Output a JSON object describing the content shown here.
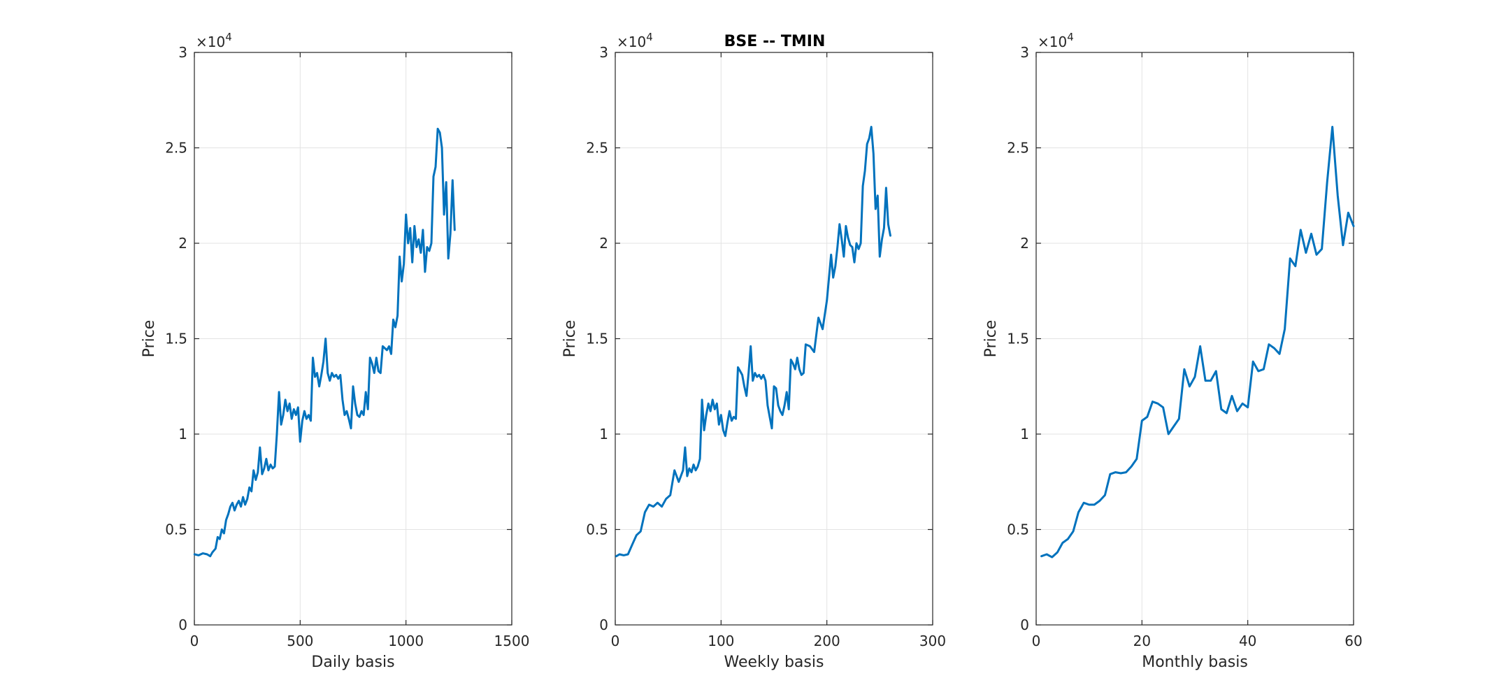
{
  "figure": {
    "title": "BSE -- TMIN",
    "line_color": "#0072bd",
    "grid_color": "#e3e3e3",
    "axis_color": "#262626"
  },
  "chart_data": [
    {
      "type": "line",
      "title": "",
      "xlabel": "Daily basis",
      "ylabel": "Price",
      "xlim": [
        0,
        1500
      ],
      "ylim": [
        0,
        30000
      ],
      "xticks": [
        0,
        500,
        1000,
        1500
      ],
      "xtick_labels": [
        "0",
        "500",
        "1000",
        "1500"
      ],
      "yticks": [
        0,
        5000,
        10000,
        15000,
        20000,
        25000,
        30000
      ],
      "ytick_labels": [
        "0",
        "0.5",
        "1",
        "1.5",
        "2",
        "2.5",
        "3"
      ],
      "y_exponent": "4",
      "grid": true,
      "series": [
        {
          "x": [
            1,
            20,
            40,
            60,
            75,
            85,
            100,
            110,
            120,
            130,
            140,
            150,
            160,
            170,
            180,
            190,
            200,
            210,
            220,
            230,
            240,
            250,
            260,
            270,
            280,
            290,
            300,
            310,
            320,
            330,
            340,
            350,
            360,
            370,
            380,
            390,
            400,
            410,
            420,
            430,
            440,
            450,
            460,
            470,
            480,
            490,
            500,
            510,
            520,
            530,
            540,
            550,
            560,
            570,
            580,
            590,
            600,
            610,
            620,
            630,
            640,
            650,
            660,
            670,
            680,
            690,
            700,
            710,
            720,
            730,
            740,
            750,
            760,
            770,
            780,
            790,
            800,
            810,
            820,
            830,
            840,
            850,
            860,
            870,
            880,
            890,
            900,
            910,
            920,
            930,
            940,
            950,
            960,
            970,
            980,
            990,
            1000,
            1010,
            1020,
            1030,
            1040,
            1050,
            1060,
            1070,
            1080,
            1090,
            1100,
            1110,
            1120,
            1130,
            1140,
            1150,
            1160,
            1170,
            1180,
            1190,
            1200,
            1210,
            1220,
            1230
          ],
          "y": [
            3700,
            3650,
            3750,
            3700,
            3600,
            3800,
            4000,
            4600,
            4500,
            5000,
            4800,
            5500,
            5800,
            6200,
            6400,
            6000,
            6300,
            6500,
            6200,
            6700,
            6300,
            6600,
            7200,
            7000,
            8100,
            7600,
            8000,
            9300,
            7900,
            8200,
            8700,
            8100,
            8400,
            8200,
            8300,
            10000,
            12200,
            10500,
            11000,
            11800,
            11200,
            11600,
            10800,
            11300,
            11000,
            11400,
            9600,
            10700,
            11200,
            10800,
            11000,
            10700,
            14000,
            13000,
            13200,
            12500,
            13100,
            13800,
            15000,
            13200,
            12800,
            13200,
            13000,
            13100,
            12900,
            13100,
            11800,
            11000,
            11200,
            10800,
            10300,
            12500,
            11600,
            11000,
            10900,
            11200,
            11000,
            12200,
            11300,
            14000,
            13700,
            13200,
            14000,
            13300,
            13200,
            14600,
            14500,
            14400,
            14600,
            14200,
            16000,
            15600,
            16200,
            19300,
            18000,
            18900,
            21500,
            20000,
            20800,
            19000,
            20900,
            19800,
            20200,
            19500,
            20700,
            18500,
            19800,
            19600,
            20000,
            23500,
            24000,
            26000,
            25800,
            25000,
            21500,
            23200,
            19200,
            20500,
            23300,
            20700
          ]
        }
      ]
    },
    {
      "type": "line",
      "title": "BSE -- TMIN",
      "xlabel": "Weekly basis",
      "ylabel": "Price",
      "xlim": [
        0,
        300
      ],
      "ylim": [
        0,
        30000
      ],
      "xticks": [
        0,
        100,
        200,
        300
      ],
      "xtick_labels": [
        "0",
        "100",
        "200",
        "300"
      ],
      "yticks": [
        0,
        5000,
        10000,
        15000,
        20000,
        25000,
        30000
      ],
      "ytick_labels": [
        "0",
        "0.5",
        "1",
        "1.5",
        "2",
        "2.5",
        "3"
      ],
      "y_exponent": "4",
      "grid": true,
      "series": [
        {
          "x": [
            1,
            4,
            8,
            12,
            16,
            20,
            24,
            28,
            32,
            36,
            40,
            44,
            48,
            52,
            56,
            60,
            64,
            66,
            68,
            70,
            72,
            74,
            76,
            78,
            80,
            82,
            84,
            86,
            88,
            90,
            92,
            94,
            96,
            98,
            100,
            102,
            104,
            106,
            108,
            110,
            112,
            114,
            116,
            118,
            120,
            122,
            124,
            126,
            128,
            130,
            132,
            134,
            136,
            138,
            140,
            142,
            144,
            146,
            148,
            150,
            152,
            154,
            156,
            158,
            160,
            162,
            164,
            166,
            168,
            170,
            172,
            174,
            176,
            178,
            180,
            184,
            188,
            192,
            196,
            200,
            204,
            206,
            208,
            210,
            212,
            214,
            216,
            218,
            220,
            222,
            224,
            226,
            228,
            230,
            232,
            234,
            236,
            238,
            240,
            242,
            244,
            246,
            248,
            250,
            252,
            254,
            256,
            258,
            260
          ],
          "y": [
            3600,
            3700,
            3650,
            3700,
            4200,
            4700,
            4900,
            5900,
            6300,
            6200,
            6400,
            6200,
            6600,
            6800,
            8100,
            7500,
            8100,
            9300,
            7800,
            8200,
            8000,
            8400,
            8100,
            8300,
            8700,
            11800,
            10200,
            11000,
            11600,
            11200,
            11800,
            11300,
            11600,
            10500,
            11000,
            10200,
            9900,
            10600,
            11200,
            10700,
            10900,
            10800,
            13500,
            13300,
            13100,
            12500,
            12000,
            13200,
            14600,
            12800,
            13200,
            13000,
            13100,
            12900,
            13100,
            12800,
            11500,
            10900,
            10300,
            12500,
            12400,
            11500,
            11200,
            11000,
            11500,
            12200,
            11300,
            13900,
            13700,
            13400,
            14000,
            13400,
            13100,
            13200,
            14700,
            14600,
            14300,
            16100,
            15500,
            17000,
            19400,
            18200,
            18800,
            19800,
            21000,
            20200,
            19300,
            20900,
            20300,
            19900,
            19800,
            19000,
            20000,
            19700,
            20000,
            23000,
            23800,
            25200,
            25500,
            26100,
            24700,
            21800,
            22500,
            19300,
            20200,
            20800,
            22900,
            21000,
            20400
          ]
        }
      ]
    },
    {
      "type": "line",
      "title": "",
      "xlabel": "Monthly basis",
      "ylabel": "Price",
      "xlim": [
        0,
        60
      ],
      "ylim": [
        0,
        30000
      ],
      "xticks": [
        0,
        20,
        40,
        60
      ],
      "xtick_labels": [
        "0",
        "20",
        "40",
        "60"
      ],
      "yticks": [
        0,
        5000,
        10000,
        15000,
        20000,
        25000,
        30000
      ],
      "ytick_labels": [
        "0",
        "0.5",
        "1",
        "1.5",
        "2",
        "2.5",
        "3"
      ],
      "y_exponent": "4",
      "grid": true,
      "series": [
        {
          "x": [
            1,
            2,
            3,
            4,
            5,
            6,
            7,
            8,
            9,
            10,
            11,
            12,
            13,
            14,
            15,
            16,
            17,
            18,
            19,
            20,
            21,
            22,
            23,
            24,
            25,
            26,
            27,
            28,
            29,
            30,
            31,
            32,
            33,
            34,
            35,
            36,
            37,
            38,
            39,
            40,
            41,
            42,
            43,
            44,
            45,
            46,
            47,
            48,
            49,
            50,
            51,
            52,
            53,
            54,
            55,
            56,
            57,
            58,
            59,
            60
          ],
          "y": [
            3600,
            3700,
            3550,
            3800,
            4300,
            4500,
            4900,
            5900,
            6400,
            6300,
            6300,
            6500,
            6800,
            7900,
            8000,
            7950,
            8000,
            8300,
            8700,
            10700,
            10900,
            11700,
            11600,
            11400,
            10000,
            10400,
            10800,
            13400,
            12500,
            13000,
            14600,
            12800,
            12800,
            13300,
            11300,
            11100,
            12000,
            11200,
            11600,
            11400,
            13800,
            13300,
            13400,
            14700,
            14500,
            14200,
            15500,
            19200,
            18800,
            20700,
            19500,
            20500,
            19400,
            19700,
            23200,
            26100,
            22500,
            19900,
            21600,
            20900
          ]
        }
      ]
    }
  ]
}
